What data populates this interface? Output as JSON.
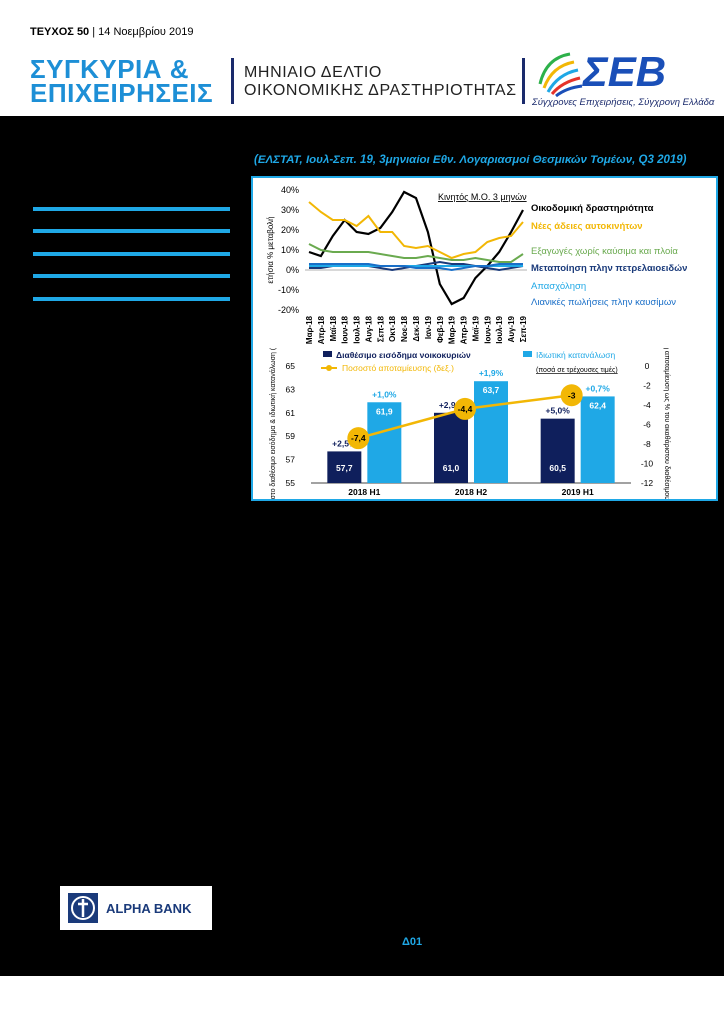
{
  "header": {
    "issue_label": "ΤΕΥΧΟΣ 50",
    "issue_date": "14 Νοεμβρίου 2019",
    "brand_line1": "ΣΥΓΚΥΡΙΑ &",
    "brand_line2": "ΕΠΙΧΕΙΡΗΣΕΙΣ",
    "bulletin_line1": "ΜΗΝΙΑΙΟ ΔΕΛΤΙΟ",
    "bulletin_line2": "ΟΙΚΟΝΟΜΙΚΗΣ ΔΡΑΣΤΗΡΙΟΤΗΤΑΣ",
    "org_name": "ΣΕΒ",
    "org_slogan": "Σύγχρονες Επιχειρήσεις, Σύγχρονη Ελλάδα",
    "colors": {
      "blue": "#1d8fd6",
      "navy": "#1a2a6c"
    }
  },
  "source_caption": "(ΕΛΣΤΑΤ, Ιουλ-Σεπ. 19, 3μηνιαίοι Εθν. Λογαριασμοί Θεσμικών Τομέων, Q3 2019)",
  "chart_data": [
    {
      "type": "line",
      "ylabel": "ετήσια % μεταβολή",
      "ylim": [
        -20,
        40
      ],
      "yticks": [
        "40%",
        "30%",
        "20%",
        "10%",
        "0%",
        "-10%",
        "-20%"
      ],
      "annotation": "Κινητός Μ.Ο. 3 μηνών",
      "categories": [
        "Μαρ-18",
        "Απρ-18",
        "Μαϊ-18",
        "Ιουν-18",
        "Ιουλ-18",
        "Αυγ-18",
        "Σεπ-18",
        "Οκτ-18",
        "Νοε-18",
        "Δεκ-18",
        "Ιαν-19",
        "Φεβ-19",
        "Μαρ-19",
        "Απρ-19",
        "Μαϊ-19",
        "Ιουν-19",
        "Ιουλ-19",
        "Αυγ-19",
        "Σεπ-19"
      ],
      "series": [
        {
          "name": "Οικοδομική δραστηριότητα",
          "color": "#000000",
          "values": [
            9,
            7,
            17,
            25,
            19,
            18,
            21,
            29,
            39,
            36,
            19,
            -7,
            -17,
            -14,
            -4,
            2,
            9,
            19,
            30
          ]
        },
        {
          "name": "Νέες άδειες αυτοκινήτων",
          "color": "#f2b705",
          "values": [
            34,
            29,
            25,
            25,
            22,
            27,
            19,
            19,
            12,
            11,
            12,
            9,
            6,
            8,
            9,
            14,
            16,
            17,
            24
          ]
        },
        {
          "name": "Εξαγωγές χωρίς καύσιμα και πλοία",
          "color": "#6aaa4f",
          "values": [
            13,
            10,
            9,
            9,
            9,
            9,
            8,
            7,
            6,
            6,
            7,
            6,
            5,
            5,
            6,
            5,
            4,
            4,
            8
          ]
        },
        {
          "name": "Μεταποίηση πλην πετρελαιοειδών",
          "color": "#1a3a7a",
          "values": [
            1,
            1,
            2,
            2,
            2,
            2,
            1,
            0,
            1,
            2,
            3,
            4,
            3,
            3,
            2,
            1,
            0,
            1,
            2
          ]
        },
        {
          "name": "Απασχόληση",
          "color": "#1fa8e6",
          "values": [
            2,
            2,
            2,
            2,
            2,
            2,
            2,
            2,
            2,
            2,
            2,
            2,
            2,
            2,
            2,
            2,
            2,
            2,
            2
          ]
        },
        {
          "name": "Λιανικές πωλήσεις πλην καυσίμων",
          "color": "#1a6fc8",
          "values": [
            3,
            3,
            3,
            3,
            3,
            3,
            2,
            2,
            2,
            1,
            1,
            1,
            0,
            1,
            2,
            2,
            3,
            3,
            3
          ]
        }
      ]
    },
    {
      "type": "bar",
      "categories": [
        "2018 Η1",
        "2018 Η2",
        "2019 Η1"
      ],
      "ylabel": "Ακαθάριστο διαθέσιμο εισόδημα & ιδιωτική κατανάλωση (€ δισ.)",
      "y2label": "Ακαθάριστη αποταμίευση ως % του ακαθάριστου διαθέσιμου εισοδήματος",
      "ylim": [
        55,
        65
      ],
      "yticks": [
        "65",
        "63",
        "61",
        "59",
        "57",
        "55"
      ],
      "y2lim": [
        -12,
        0
      ],
      "y2ticks": [
        "0",
        "-2",
        "-4",
        "-6",
        "-8",
        "-10",
        "-12"
      ],
      "note": "(ποσά σε τρέχουσες τιμές)",
      "series": [
        {
          "name": "Διαθέσιμο εισόδημα νοικοκυριών",
          "color": "#0f1f5c",
          "values": [
            57.7,
            61.0,
            60.5
          ],
          "value_labels": [
            "57,7",
            "61,0",
            "60,5"
          ],
          "growth_labels": [
            "+2,5%",
            "+2,9%",
            "+5,0%"
          ]
        },
        {
          "name": "Ιδιωτική κατανάλωση",
          "color": "#1fa8e6",
          "values": [
            61.9,
            63.7,
            62.4
          ],
          "value_labels": [
            "61,9",
            "63,7",
            "62,4"
          ],
          "growth_labels": [
            "+1,0%",
            "+1,9%",
            "+0,7%"
          ]
        },
        {
          "name": "Ποσοστό αποταμίευσης (δεξ.)",
          "color": "#f2b705",
          "values": [
            -7.4,
            -4.4,
            -3
          ],
          "value_labels": [
            "-7,4",
            "-4,4",
            "-3"
          ]
        }
      ]
    }
  ],
  "footer": {
    "sponsor": "ALPHA BANK",
    "page": "Δ01"
  }
}
